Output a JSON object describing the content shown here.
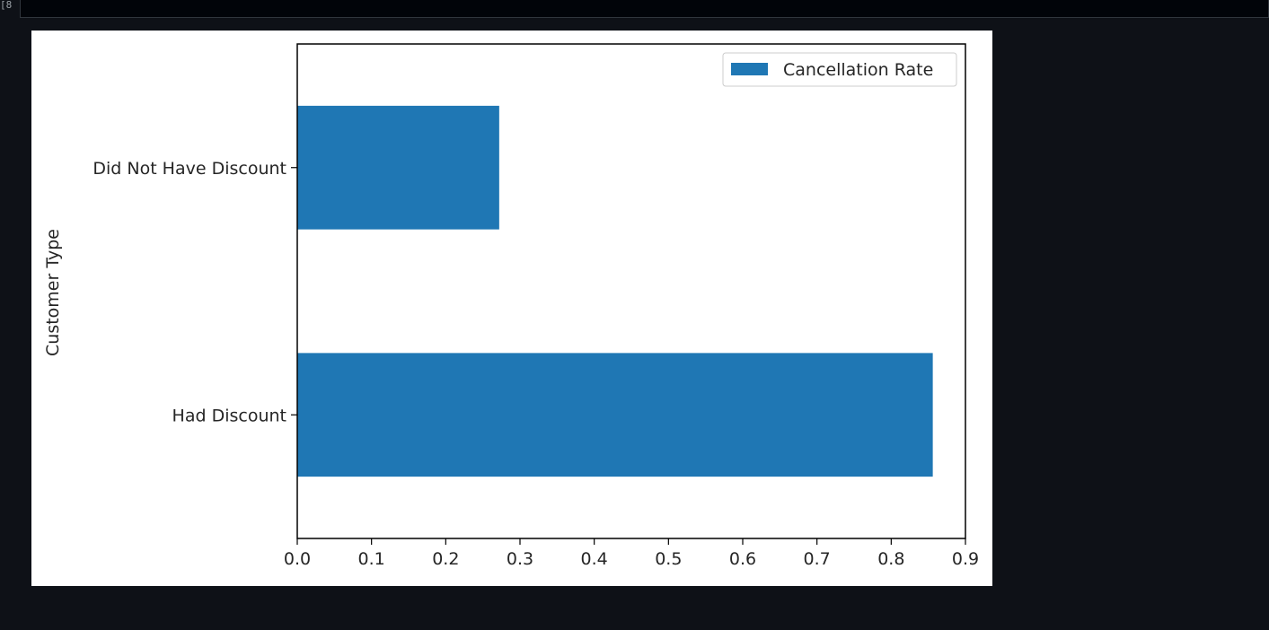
{
  "cell": {
    "prompt": "8]"
  },
  "chart_data": {
    "type": "bar",
    "orientation": "horizontal",
    "categories": [
      "Had Discount",
      "Did Not Have Discount"
    ],
    "series": [
      {
        "name": "Cancellation Rate",
        "values": [
          0.856,
          0.272
        ],
        "color": "#1f77b4"
      }
    ],
    "xlabel": "",
    "ylabel": "Customer Type",
    "xlim": [
      0.0,
      0.9
    ],
    "xticks": [
      "0.0",
      "0.1",
      "0.2",
      "0.3",
      "0.4",
      "0.5",
      "0.6",
      "0.7",
      "0.8",
      "0.9"
    ],
    "grid": false,
    "legend_position": "upper right"
  }
}
